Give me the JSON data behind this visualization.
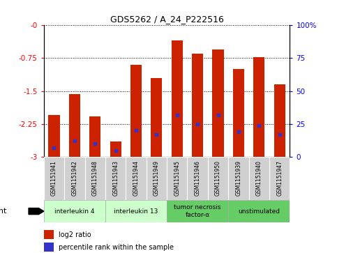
{
  "title": "GDS5262 / A_24_P222516",
  "samples": [
    "GSM1151941",
    "GSM1151942",
    "GSM1151948",
    "GSM1151943",
    "GSM1151944",
    "GSM1151949",
    "GSM1151945",
    "GSM1151946",
    "GSM1151950",
    "GSM1151939",
    "GSM1151940",
    "GSM1151947"
  ],
  "log2_ratio": [
    -2.05,
    -1.57,
    -2.07,
    -2.65,
    -0.9,
    -1.2,
    -0.35,
    -0.65,
    -0.55,
    -1.0,
    -0.72,
    -1.35
  ],
  "percentile_rank": [
    7,
    12,
    10,
    5,
    20,
    17,
    32,
    25,
    32,
    19,
    24,
    17
  ],
  "agents": [
    {
      "label": "interleukin 4",
      "start": 0,
      "end": 3,
      "color": "#ccffcc"
    },
    {
      "label": "interleukin 13",
      "start": 3,
      "end": 6,
      "color": "#ccffcc"
    },
    {
      "label": "tumor necrosis\nfactor-α",
      "start": 6,
      "end": 9,
      "color": "#66cc66"
    },
    {
      "label": "unstimulated",
      "start": 9,
      "end": 12,
      "color": "#66cc66"
    }
  ],
  "ylim_left": [
    -3,
    0
  ],
  "ylim_right": [
    0,
    100
  ],
  "yticks_left": [
    0,
    -0.75,
    -1.5,
    -2.25,
    -3
  ],
  "yticks_right": [
    0,
    25,
    50,
    75,
    100
  ],
  "bar_color": "#cc2200",
  "percentile_color": "#3333cc",
  "background_color": "#ffffff",
  "grid_color": "#000000",
  "bar_width": 0.55,
  "legend_items": [
    {
      "label": "log2 ratio",
      "color": "#cc2200"
    },
    {
      "label": "percentile rank within the sample",
      "color": "#3333cc"
    }
  ]
}
